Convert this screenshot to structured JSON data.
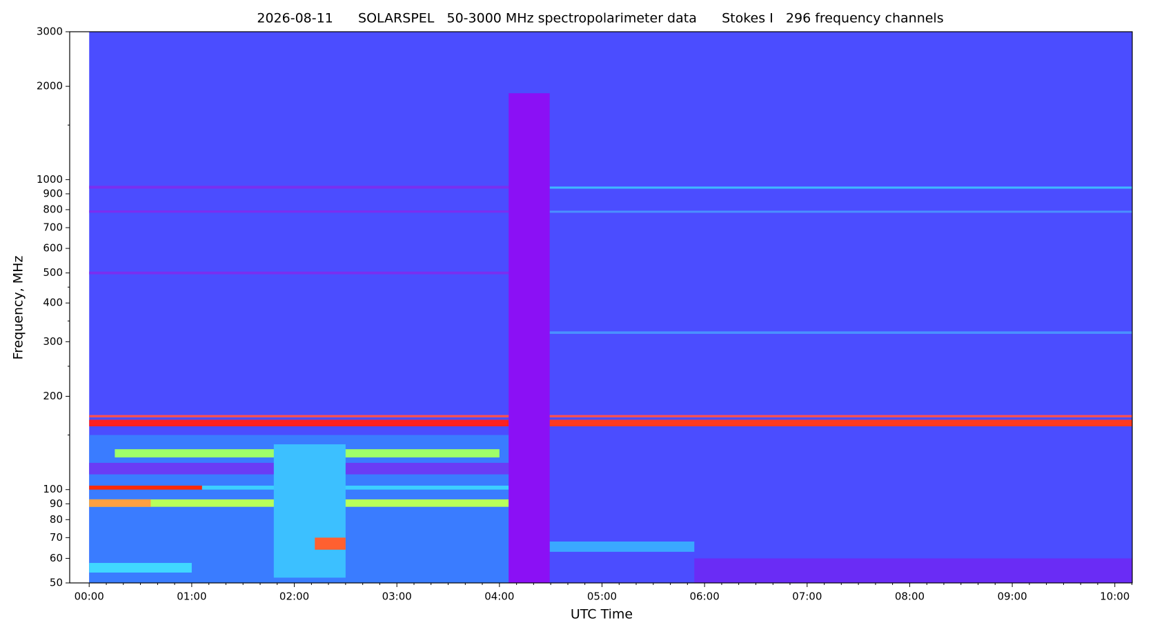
{
  "chart_data": {
    "type": "spectrogram",
    "title": "2026-08-11      SOLARSPEL   50-3000 MHz spectropolarimeter data      Stokes I   296 frequency channels",
    "x_label": "UTC Time",
    "y_label": "Frequency, MHz",
    "y_log": true,
    "background_color": "#4b4dff",
    "data_time": [
      0,
      10.17
    ],
    "xlim": [
      -0.19,
      10.17
    ],
    "ylim": [
      50,
      3000
    ],
    "xticks": [
      {
        "value": 0,
        "label": "00:00"
      },
      {
        "value": 1,
        "label": "01:00"
      },
      {
        "value": 2,
        "label": "02:00"
      },
      {
        "value": 3,
        "label": "03:00"
      },
      {
        "value": 4,
        "label": "04:00"
      },
      {
        "value": 5,
        "label": "05:00"
      },
      {
        "value": 6,
        "label": "06:00"
      },
      {
        "value": 7,
        "label": "07:00"
      },
      {
        "value": 8,
        "label": "08:00"
      },
      {
        "value": 9,
        "label": "09:00"
      },
      {
        "value": 10,
        "label": "10:00"
      }
    ],
    "x_minor_ticks": [
      0.167,
      0.333,
      0.5,
      0.667,
      0.833,
      1.167,
      1.333,
      1.5,
      1.667,
      1.833,
      2.167,
      2.333,
      2.5,
      2.667,
      2.833,
      3.167,
      3.333,
      3.5,
      3.667,
      3.833,
      4.167,
      4.333,
      4.5,
      4.667,
      4.833,
      5.167,
      5.333,
      5.5,
      5.667,
      5.833,
      6.167,
      6.333,
      6.5,
      6.667,
      6.833,
      7.167,
      7.333,
      7.5,
      7.667,
      7.833,
      8.167,
      8.333,
      8.5,
      8.667,
      8.833,
      9.167,
      9.333,
      9.5,
      9.667,
      9.833,
      10.167
    ],
    "yticks": [
      50,
      60,
      70,
      80,
      90,
      100,
      200,
      300,
      400,
      500,
      600,
      700,
      800,
      900,
      1000,
      2000,
      3000
    ],
    "y_minor_ticks": [
      150,
      250,
      350,
      450,
      1500
    ],
    "bands": [
      {
        "time": [
          0,
          4.09
        ],
        "freq": [
          50,
          150
        ],
        "color": "#3a7cff"
      },
      {
        "time": [
          0,
          4.09
        ],
        "freq": [
          112,
          122
        ],
        "color": "#6a3cf5"
      },
      {
        "time": [
          0,
          1.0
        ],
        "freq": [
          54,
          58
        ],
        "color": "#40d8ff"
      },
      {
        "time": [
          0,
          4.09
        ],
        "freq": [
          88,
          93
        ],
        "color": "#b8ff5a"
      },
      {
        "time": [
          0,
          0.6
        ],
        "freq": [
          88,
          93
        ],
        "color": "#ffa040"
      },
      {
        "time": [
          1.1,
          4.09
        ],
        "freq": [
          100,
          103
        ],
        "color": "#3ccfff"
      },
      {
        "time": [
          0,
          1.1
        ],
        "freq": [
          100,
          103
        ],
        "color": "#ff2a00"
      },
      {
        "time": [
          0.25,
          4.0
        ],
        "freq": [
          127,
          135
        ],
        "color": "#9fff6a"
      },
      {
        "time": [
          1.8,
          2.5
        ],
        "freq": [
          52,
          140
        ],
        "color": "#3cc0ff"
      },
      {
        "time": [
          2.2,
          2.5
        ],
        "freq": [
          64,
          70
        ],
        "color": "#ff6030"
      },
      {
        "time": [
          0,
          4.09
        ],
        "freq": [
          160,
          168
        ],
        "color": "#ff2020"
      },
      {
        "time": [
          4.49,
          10.17
        ],
        "freq": [
          160,
          168
        ],
        "color": "#ff3a20"
      },
      {
        "time": [
          0,
          10.17
        ],
        "freq": [
          171,
          174
        ],
        "color": "#ff5050"
      },
      {
        "time": [
          0,
          4.09
        ],
        "freq": [
          495,
          505
        ],
        "color": "#7a2ef0"
      },
      {
        "time": [
          0,
          4.09
        ],
        "freq": [
          782,
          796
        ],
        "color": "#7a2ef0"
      },
      {
        "time": [
          0,
          4.09
        ],
        "freq": [
          935,
          955
        ],
        "color": "#7a2ef0"
      },
      {
        "time": [
          4.49,
          10.17
        ],
        "freq": [
          935,
          950
        ],
        "color": "#3fb8ff"
      },
      {
        "time": [
          4.49,
          10.17
        ],
        "freq": [
          782,
          794
        ],
        "color": "#4a90ff"
      },
      {
        "time": [
          4.49,
          10.17
        ],
        "freq": [
          318,
          324
        ],
        "color": "#4a90ff"
      },
      {
        "time": [
          4.49,
          5.9
        ],
        "freq": [
          63,
          68
        ],
        "color": "#3aa8ff"
      },
      {
        "time": [
          5.9,
          10.17
        ],
        "freq": [
          50,
          60
        ],
        "color": "#6a2cf5"
      },
      {
        "time": [
          4.09,
          4.49
        ],
        "freq": [
          50,
          1900
        ],
        "color": "#8b10f5"
      }
    ]
  }
}
